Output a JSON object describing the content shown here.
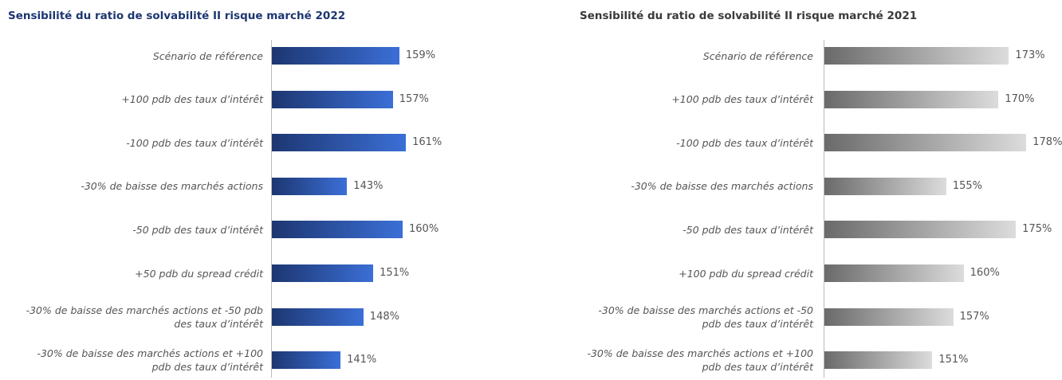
{
  "chart_data": [
    {
      "type": "bar",
      "orientation": "horizontal",
      "title": "Sensibilité du ratio de solvabilité II risque marché 2022",
      "categories": [
        "Scénario de référence",
        "+100 pdb des taux d’intérêt",
        "-100 pdb des taux d’intérêt",
        "-30% de baisse des marchés actions",
        "-50 pdb des taux d’intérêt",
        "+50 pdb du spread crédit",
        "-30% de baisse des marchés actions et -50 pdb des taux d’intérêt",
        "-30% de baisse des marchés actions et +100 pdb des taux d’intérêt"
      ],
      "values": [
        159,
        157,
        161,
        143,
        160,
        151,
        148,
        141
      ],
      "value_labels": [
        "159%",
        "157%",
        "161%",
        "143%",
        "160%",
        "151%",
        "148%",
        "141%"
      ],
      "color": [
        "#1d3671",
        "#3b6fd6"
      ],
      "xlim": [
        120,
        170
      ]
    },
    {
      "type": "bar",
      "orientation": "horizontal",
      "title": "Sensibilité du ratio de solvabilité II risque marché 2021",
      "categories": [
        "Scénario de référence",
        "+100 pdb des taux d’intérêt",
        "-100 pdb des taux d’intérêt",
        "-30% de baisse des marchés actions",
        "-50 pdb des taux d’intérêt",
        "+100 pdb du spread crédit",
        "-30% de baisse des marchés actions et -50 pdb des taux d’intérêt",
        "-30% de baisse des marchés actions et +100 pdb des taux d’intérêt"
      ],
      "values": [
        173,
        170,
        178,
        155,
        175,
        160,
        157,
        151
      ],
      "value_labels": [
        "173%",
        "170%",
        "178%",
        "155%",
        "175%",
        "160%",
        "157%",
        "151%"
      ],
      "color": [
        "#6a6a6a",
        "#dcdcdc"
      ],
      "xlim": [
        120,
        180
      ]
    }
  ]
}
